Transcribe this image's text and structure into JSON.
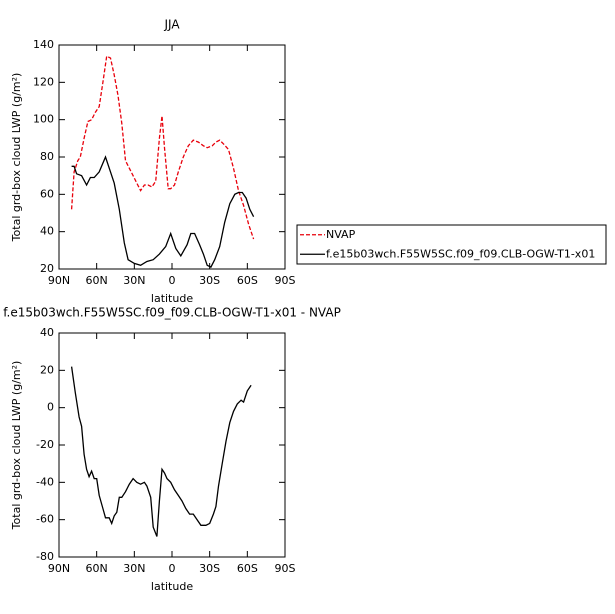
{
  "chart_data": [
    {
      "type": "line",
      "title": "JJA",
      "xlabel": "latitude",
      "ylabel": "Total grd-box cloud LWP (g/m²)",
      "xlim": [
        90,
        -90
      ],
      "ylim": [
        20,
        140
      ],
      "xticks": [
        {
          "value": 90,
          "label": "90N"
        },
        {
          "value": 60,
          "label": "60N"
        },
        {
          "value": 30,
          "label": "30N"
        },
        0,
        {
          "value": -30,
          "label": "30S"
        },
        {
          "value": -60,
          "label": "60S"
        },
        {
          "value": -90,
          "label": "90S"
        }
      ],
      "yticks": [
        20,
        40,
        60,
        80,
        100,
        120,
        140
      ],
      "legend": "right",
      "series": [
        {
          "name": "NVAP",
          "color": "#e8000b",
          "linestyle": "dashed",
          "x": [
            80,
            78,
            75,
            73,
            70,
            67,
            64,
            61,
            58,
            55,
            52,
            49,
            46,
            43,
            40,
            37,
            34,
            31,
            28,
            25,
            22,
            19,
            16,
            13,
            10,
            8,
            6,
            3,
            1,
            -2,
            -5,
            -9,
            -13,
            -17,
            -21,
            -25,
            -28,
            -32,
            -35,
            -38,
            -41,
            -45,
            -49,
            -53,
            -57,
            -61,
            -65
          ],
          "values": [
            52,
            72,
            78,
            80,
            90,
            99,
            100,
            104,
            107,
            120,
            134,
            133,
            124,
            113,
            98,
            78,
            74,
            70,
            66,
            62,
            65,
            65,
            64,
            67,
            90,
            102,
            85,
            63,
            63,
            65,
            72,
            80,
            86,
            89,
            88,
            86,
            85,
            86,
            88,
            89,
            87,
            84,
            74,
            62,
            54,
            44,
            36
          ]
        },
        {
          "name": "f.e15b03wch.F55W5SC.f09_f09.CLB-OGW-T1-x01",
          "color": "#000000",
          "linestyle": "solid",
          "x": [
            80,
            78,
            76,
            72,
            68,
            65,
            62,
            58,
            53,
            49,
            46,
            42,
            38,
            35,
            30,
            25,
            20,
            15,
            10,
            5,
            1,
            -3,
            -7,
            -12,
            -15,
            -18,
            -22,
            -25,
            -28,
            -31,
            -34,
            -38,
            -42,
            -46,
            -50,
            -53,
            -56,
            -59,
            -62,
            -65
          ],
          "values": [
            75,
            75,
            71,
            70,
            65,
            69,
            69,
            72,
            80,
            72,
            66,
            52,
            34,
            25,
            23,
            22,
            24,
            25,
            28,
            32,
            39,
            31,
            27,
            33,
            39,
            39,
            33,
            28,
            22,
            21,
            25,
            32,
            45,
            55,
            60,
            61,
            61,
            58,
            52,
            48
          ]
        }
      ]
    },
    {
      "type": "line",
      "title": "f.e15b03wch.F55W5SC.f09_f09.CLB-OGW-T1-x01 - NVAP",
      "xlabel": "latitude",
      "ylabel": "Total grd-box cloud LWP (g/m²)",
      "xlim": [
        90,
        -90
      ],
      "ylim": [
        -80,
        40
      ],
      "xticks": [
        {
          "value": 90,
          "label": "90N"
        },
        {
          "value": 60,
          "label": "60N"
        },
        {
          "value": 30,
          "label": "30N"
        },
        0,
        {
          "value": -30,
          "label": "30S"
        },
        {
          "value": -60,
          "label": "60S"
        },
        {
          "value": -90,
          "label": "90S"
        }
      ],
      "yticks": [
        -80,
        -60,
        -40,
        -20,
        0,
        20,
        40
      ],
      "series": [
        {
          "color": "#000000",
          "linestyle": "solid",
          "x": [
            80,
            77,
            74,
            72,
            70,
            68,
            66,
            64,
            62,
            60,
            58,
            55,
            53,
            50,
            48,
            46,
            44,
            42,
            40,
            37,
            34,
            31,
            28,
            25,
            22,
            20,
            17,
            15,
            12,
            10,
            8,
            6,
            4,
            1,
            -2,
            -5,
            -8,
            -11,
            -14,
            -17,
            -20,
            -23,
            -27,
            -30,
            -33,
            -35,
            -37,
            -40,
            -43,
            -46,
            -49,
            -52,
            -55,
            -57,
            -60,
            -63
          ],
          "values": [
            22,
            8,
            -5,
            -10,
            -25,
            -33,
            -37,
            -34,
            -38,
            -38,
            -47,
            -54,
            -59,
            -59,
            -62,
            -58,
            -56,
            -48,
            -48,
            -45,
            -41,
            -38,
            -40,
            -41,
            -40,
            -42,
            -48,
            -64,
            -69,
            -50,
            -33,
            -35,
            -38,
            -40,
            -44,
            -47,
            -50,
            -54,
            -57,
            -57,
            -60,
            -63,
            -63,
            -62,
            -57,
            -53,
            -42,
            -30,
            -18,
            -8,
            -2,
            2,
            4,
            3,
            9,
            12
          ]
        }
      ]
    }
  ]
}
